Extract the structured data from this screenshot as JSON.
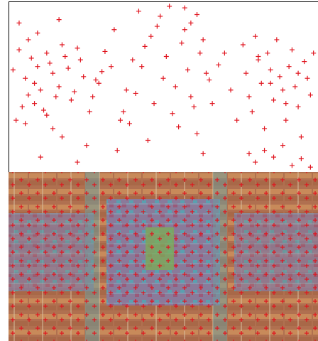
{
  "chart_data": {
    "type": "scatter",
    "color": "#e0141e",
    "marker": "plus",
    "xlim": [
      0,
      100
    ],
    "ylim": [
      0,
      100
    ],
    "x": [
      1,
      3,
      5,
      7,
      9,
      10,
      12,
      14,
      15,
      17,
      4,
      6,
      8,
      11,
      13,
      16,
      18,
      20,
      22,
      24,
      2,
      5,
      8,
      12,
      19,
      21,
      23,
      26,
      28,
      30,
      6,
      9,
      14,
      17,
      25,
      27,
      31,
      29,
      33,
      35,
      3,
      10,
      16,
      22,
      37,
      39,
      41,
      43,
      45,
      47,
      44,
      46,
      48,
      49,
      50,
      51,
      52,
      53,
      54,
      55,
      56,
      57,
      58,
      59,
      60,
      61,
      62,
      63,
      64,
      42,
      40,
      38,
      36,
      34,
      57,
      59,
      61,
      63,
      65,
      66,
      68,
      70,
      72,
      74,
      76,
      77,
      78,
      79,
      80,
      81,
      82,
      83,
      84,
      85,
      86,
      87,
      88,
      89,
      90,
      91,
      92,
      93,
      94,
      95,
      96,
      97,
      98,
      99,
      78,
      80,
      83,
      86,
      89,
      92,
      95,
      98,
      81,
      85,
      90,
      94
    ],
    "y": [
      60,
      72,
      55,
      67,
      62,
      48,
      70,
      58,
      44,
      75,
      38,
      45,
      52,
      36,
      64,
      50,
      68,
      42,
      73,
      56,
      30,
      28,
      40,
      33,
      61,
      47,
      66,
      35,
      54,
      59,
      78,
      82,
      25,
      20,
      15,
      44,
      71,
      52,
      62,
      12,
      88,
      8,
      90,
      5,
      35,
      28,
      46,
      62,
      18,
      40,
      74,
      80,
      86,
      92,
      55,
      68,
      98,
      34,
      50,
      26,
      76,
      84,
      60,
      44,
      38,
      22,
      70,
      10,
      58,
      95,
      66,
      48,
      30,
      84,
      97,
      88,
      93,
      78,
      54,
      40,
      63,
      70,
      48,
      30,
      75,
      58,
      44,
      35,
      80,
      66,
      52,
      25,
      70,
      60,
      42,
      78,
      56,
      48,
      30,
      62,
      72,
      50,
      38,
      20,
      65,
      55,
      45,
      70,
      10,
      5,
      12,
      8,
      15,
      3,
      7,
      2,
      68,
      52,
      40,
      58
    ]
  },
  "image": {
    "alt": "chip-layout"
  }
}
